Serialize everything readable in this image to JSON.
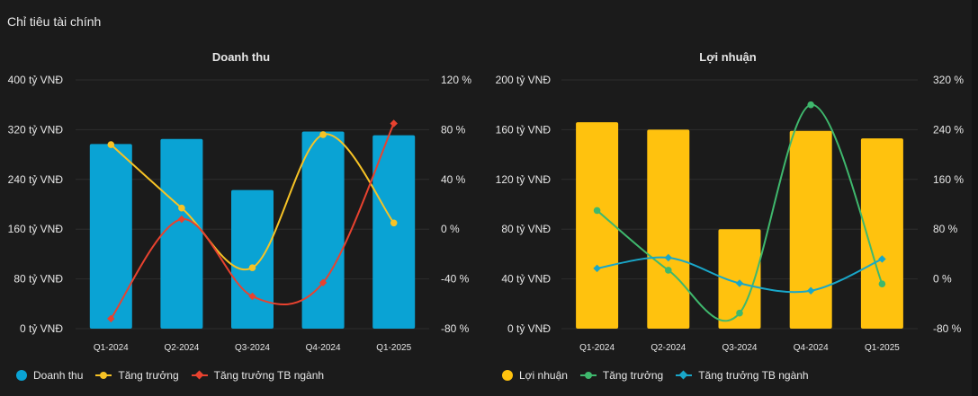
{
  "section_title": "Chỉ tiêu tài chính",
  "colors": {
    "revenue_bar": "#0aa3d4",
    "profit_bar": "#ffc20e",
    "yellow_line": "#f7c325",
    "red_line": "#e8422f",
    "green_line": "#3fb86d",
    "cyan_line": "#19a7c9",
    "grid": "#2e2e2e",
    "text": "#e6e6e6"
  },
  "chart_data": [
    {
      "type": "bar",
      "title": "Doanh thu",
      "categories": [
        "Q1-2024",
        "Q2-2024",
        "Q3-2024",
        "Q4-2024",
        "Q1-2025"
      ],
      "left_axis": {
        "ticks": [
          "0 tỷ VNĐ",
          "80 tỷ VNĐ",
          "160 tỷ VNĐ",
          "240 tỷ VNĐ",
          "320 tỷ VNĐ",
          "400 tỷ VNĐ"
        ],
        "range": [
          0,
          400
        ]
      },
      "right_axis": {
        "ticks": [
          "-80 %",
          "-40 %",
          "0 %",
          "40 %",
          "80 %",
          "120 %"
        ],
        "range": [
          -80,
          120
        ]
      },
      "series": [
        {
          "name": "Doanh thu",
          "kind": "bar",
          "axis": "left",
          "color": "#0aa3d4",
          "values": [
            297,
            305,
            223,
            317,
            311
          ]
        },
        {
          "name": "Tăng trưởng",
          "kind": "line",
          "axis": "right",
          "color": "#f7c325",
          "marker": "circle",
          "values": [
            68,
            17,
            -31,
            76,
            5
          ]
        },
        {
          "name": "Tăng trưởng TB ngành",
          "kind": "line",
          "axis": "right",
          "color": "#e8422f",
          "marker": "diamond",
          "values": [
            -72,
            8,
            -54,
            -43,
            85
          ]
        }
      ],
      "legend": [
        "Doanh thu",
        "Tăng trưởng",
        "Tăng trưởng TB ngành"
      ],
      "legend_position": "bottom-left"
    },
    {
      "type": "bar",
      "title": "Lợi nhuận",
      "categories": [
        "Q1-2024",
        "Q2-2024",
        "Q3-2024",
        "Q4-2024",
        "Q1-2025"
      ],
      "left_axis": {
        "ticks": [
          "0 tỷ VNĐ",
          "40 tỷ VNĐ",
          "80 tỷ VNĐ",
          "120 tỷ VNĐ",
          "160 tỷ VNĐ",
          "200 tỷ VNĐ"
        ],
        "range": [
          0,
          200
        ]
      },
      "right_axis": {
        "ticks": [
          "-80 %",
          "0 %",
          "80 %",
          "160 %",
          "240 %",
          "320 %"
        ],
        "range": [
          -80,
          320
        ]
      },
      "series": [
        {
          "name": "Lợi nhuận",
          "kind": "bar",
          "axis": "left",
          "color": "#ffc20e",
          "values": [
            166,
            160,
            80,
            159,
            153
          ]
        },
        {
          "name": "Tăng trưởng",
          "kind": "line",
          "axis": "right",
          "color": "#3fb86d",
          "marker": "circle",
          "values": [
            110,
            14,
            -55,
            280,
            -8
          ]
        },
        {
          "name": "Tăng trưởng TB ngành",
          "kind": "line",
          "axis": "right",
          "color": "#19a7c9",
          "marker": "diamond",
          "values": [
            17,
            34,
            -7,
            -19,
            32
          ]
        }
      ],
      "legend": [
        "Lợi nhuận",
        "Tăng trưởng",
        "Tăng trưởng TB ngành"
      ],
      "legend_position": "bottom-left"
    }
  ]
}
